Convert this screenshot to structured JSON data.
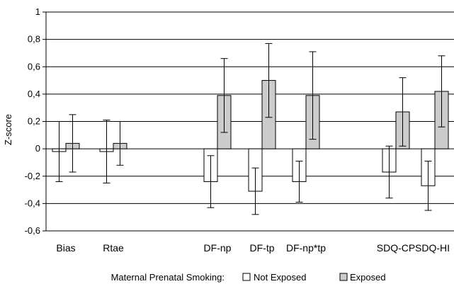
{
  "chart_data": {
    "type": "bar",
    "ylabel": "Z-score",
    "ylim": [
      -0.6,
      1
    ],
    "yticks": [
      "1",
      "0,8",
      "0,6",
      "0,4",
      "0,2",
      "0",
      "-0,2",
      "-0,4",
      "-0,6"
    ],
    "ytick_values": [
      1,
      0.8,
      0.6,
      0.4,
      0.2,
      0,
      -0.2,
      -0.4,
      -0.6
    ],
    "grid": true,
    "categories": [
      "Bias",
      "Rtae",
      "DF-np",
      "DF-tp",
      "DF-np*tp",
      "SDQ-CP",
      "SDQ-HI"
    ],
    "legend": {
      "title": "Maternal Prenatal Smoking:",
      "position": "bottom"
    },
    "series": [
      {
        "name": "Not Exposed",
        "color": "#ffffff",
        "values": [
          -0.02,
          -0.02,
          -0.24,
          -0.31,
          -0.24,
          -0.17,
          -0.27
        ],
        "error_low": [
          -0.24,
          -0.25,
          -0.43,
          -0.48,
          -0.39,
          -0.36,
          -0.45
        ],
        "error_high": [
          0.2,
          0.21,
          -0.05,
          -0.14,
          -0.09,
          0.02,
          -0.09
        ]
      },
      {
        "name": "Exposed",
        "color": "#cccccc",
        "values": [
          0.04,
          0.04,
          0.39,
          0.5,
          0.39,
          0.27,
          0.42
        ],
        "error_low": [
          -0.17,
          -0.12,
          0.12,
          0.23,
          0.07,
          0.02,
          0.16
        ],
        "error_high": [
          0.25,
          0.2,
          0.66,
          0.77,
          0.71,
          0.52,
          0.68
        ]
      }
    ]
  }
}
